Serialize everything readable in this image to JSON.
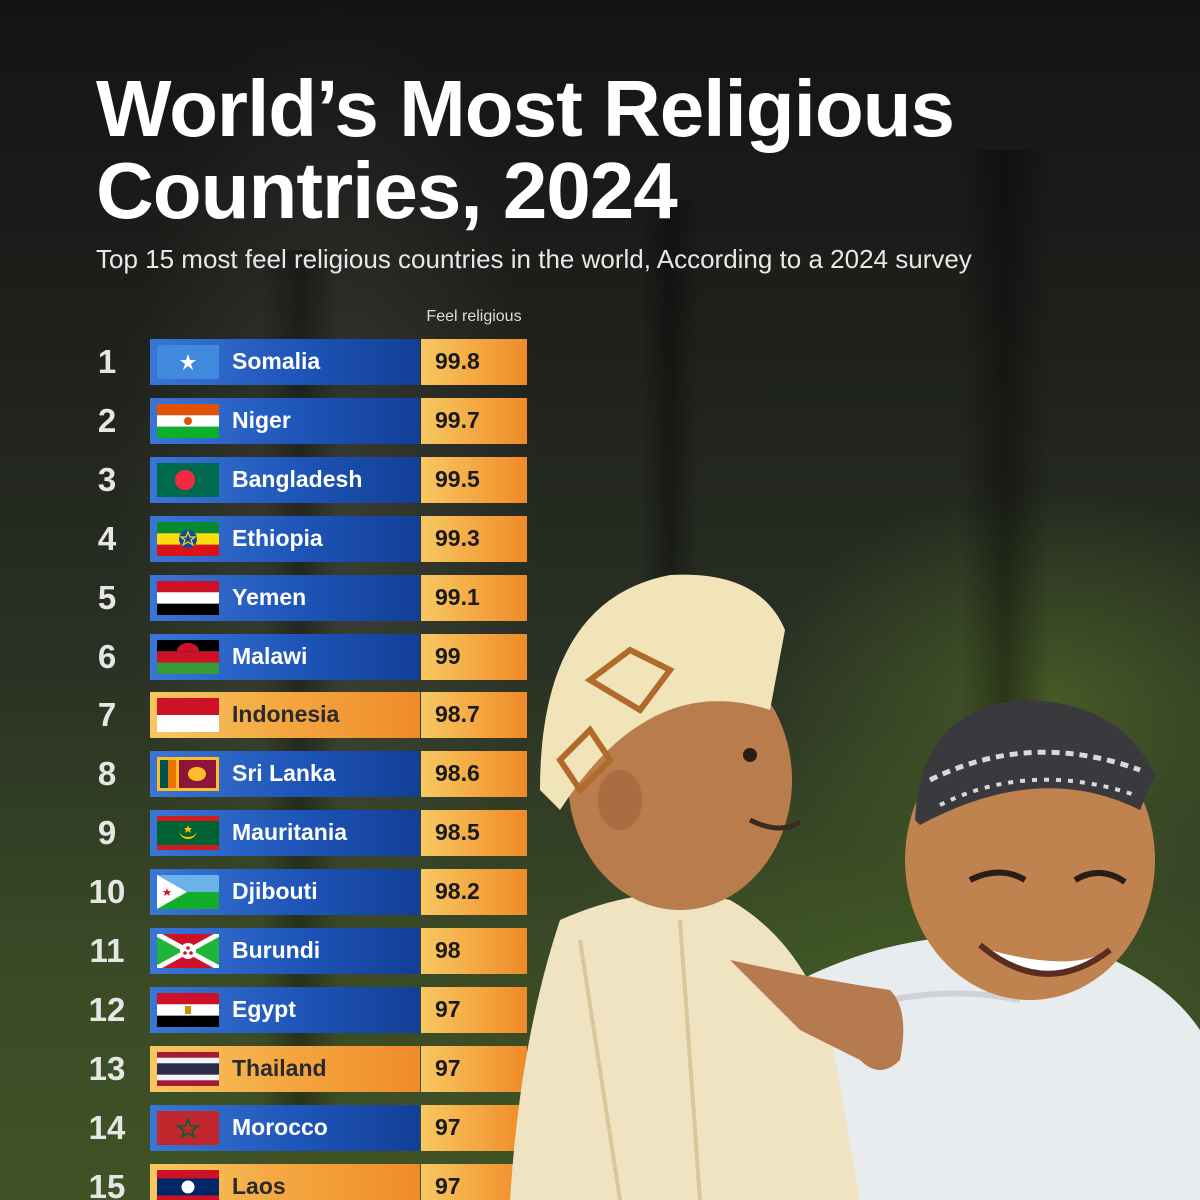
{
  "title_line1": "World’s Most Religious",
  "title_line2": "Countries, 2024",
  "subtitle": "Top 15 most feel religious countries in the world, According to a 2024 survey",
  "colors": {
    "blue": "#1e55b8",
    "orange": "#f4a640",
    "title": "#ffffff"
  },
  "chart_data": {
    "type": "table",
    "title": "World’s Most Religious Countries, 2024",
    "subtitle": "Top 15 most feel religious countries in the world, According to a 2024 survey",
    "value_column_label": "Feel religious",
    "rows": [
      {
        "rank": "1",
        "country": "Somalia",
        "value": "99.8",
        "flag": "somalia-flag",
        "style": "blue"
      },
      {
        "rank": "2",
        "country": "Niger",
        "value": "99.7",
        "flag": "niger-flag",
        "style": "blue"
      },
      {
        "rank": "3",
        "country": "Bangladesh",
        "value": "99.5",
        "flag": "bangladesh-flag",
        "style": "blue"
      },
      {
        "rank": "4",
        "country": "Ethiopia",
        "value": "99.3",
        "flag": "ethiopia-flag",
        "style": "blue"
      },
      {
        "rank": "5",
        "country": "Yemen",
        "value": "99.1",
        "flag": "yemen-flag",
        "style": "blue"
      },
      {
        "rank": "6",
        "country": "Malawi",
        "value": "99",
        "flag": "malawi-flag",
        "style": "blue"
      },
      {
        "rank": "7",
        "country": "Indonesia",
        "value": "98.7",
        "flag": "indonesia-flag",
        "style": "orange"
      },
      {
        "rank": "8",
        "country": "Sri Lanka",
        "value": "98.6",
        "flag": "sri-lanka-flag",
        "style": "blue"
      },
      {
        "rank": "9",
        "country": "Mauritania",
        "value": "98.5",
        "flag": "mauritania-flag",
        "style": "blue"
      },
      {
        "rank": "10",
        "country": "Djibouti",
        "value": "98.2",
        "flag": "djibouti-flag",
        "style": "blue"
      },
      {
        "rank": "11",
        "country": "Burundi",
        "value": "98",
        "flag": "burundi-flag",
        "style": "blue"
      },
      {
        "rank": "12",
        "country": "Egypt",
        "value": "97",
        "flag": "egypt-flag",
        "style": "blue"
      },
      {
        "rank": "13",
        "country": "Thailand",
        "value": "97",
        "flag": "thailand-flag",
        "style": "orange"
      },
      {
        "rank": "14",
        "country": "Morocco",
        "value": "97",
        "flag": "morocco-flag",
        "style": "blue"
      },
      {
        "rank": "15",
        "country": "Laos",
        "value": "97",
        "flag": "laos-flag",
        "style": "orange"
      }
    ]
  }
}
